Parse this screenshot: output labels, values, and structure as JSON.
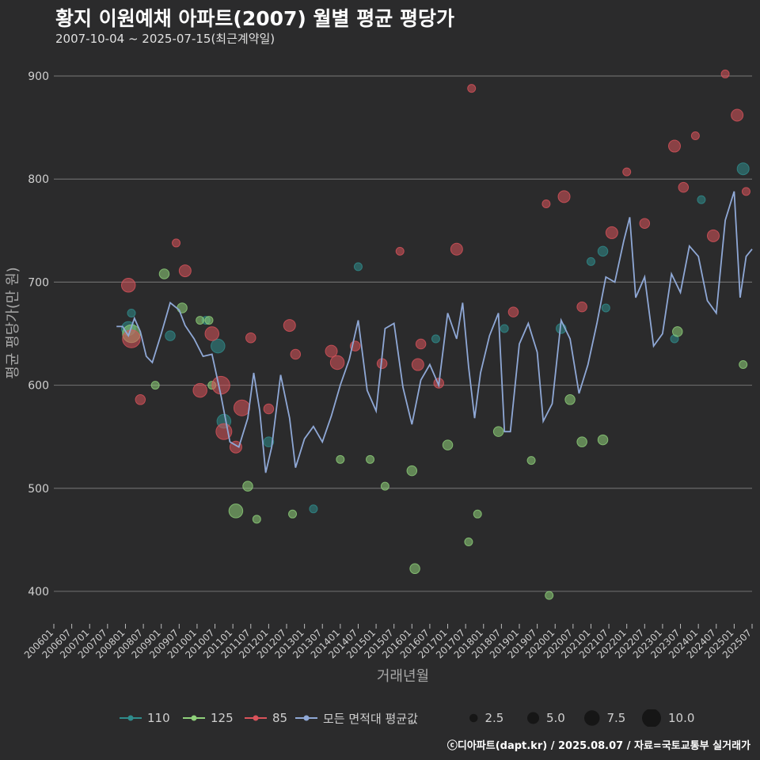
{
  "title": "황지 이원예채 아파트(2007) 월별 평균 평당가",
  "subtitle": "2007-10-04 ~ 2025-07-15(최근계약일)",
  "footer": "ⓒ디아파트(dapt.kr) / 2025.08.07 / 자료=국토교통부 실거래가",
  "chart_data": {
    "type": "scatter",
    "xlabel": "거래년월",
    "ylabel": "평균 평당가(만 원)",
    "ylim": [
      370,
      920
    ],
    "yticks": [
      400,
      500,
      600,
      700,
      800,
      900
    ],
    "xticks": [
      "200601",
      "200607",
      "200701",
      "200707",
      "200801",
      "200807",
      "200901",
      "200907",
      "201001",
      "201007",
      "201101",
      "201107",
      "201201",
      "201207",
      "201301",
      "201307",
      "201401",
      "201407",
      "201501",
      "201507",
      "201601",
      "201607",
      "201701",
      "201707",
      "201801",
      "201807",
      "201901",
      "201907",
      "202001",
      "202007",
      "202101",
      "202107",
      "202201",
      "202207",
      "202301",
      "202307",
      "202401",
      "202407",
      "202501",
      "202507"
    ],
    "grid": true,
    "legend_position": "bottom",
    "colors": {
      "110": "#2f8c8c",
      "125": "#8fd17a",
      "85": "#d9535b",
      "avg": "#8fa8d6"
    },
    "series": [
      {
        "name": "110",
        "points": [
          {
            "x": "2008-02",
            "y": 655,
            "size": 5
          },
          {
            "x": "2008-03",
            "y": 670,
            "size": 2
          },
          {
            "x": "2009-04",
            "y": 648,
            "size": 3
          },
          {
            "x": "2010-04",
            "y": 663,
            "size": 2
          },
          {
            "x": "2010-08",
            "y": 638,
            "size": 5
          },
          {
            "x": "2010-10",
            "y": 565,
            "size": 5
          },
          {
            "x": "2012-01",
            "y": 545,
            "size": 3
          },
          {
            "x": "2013-04",
            "y": 480,
            "size": 2
          },
          {
            "x": "2014-07",
            "y": 715,
            "size": 2
          },
          {
            "x": "2016-09",
            "y": 645,
            "size": 2
          },
          {
            "x": "2018-08",
            "y": 655,
            "size": 2
          },
          {
            "x": "2020-03",
            "y": 655,
            "size": 3
          },
          {
            "x": "2021-01",
            "y": 720,
            "size": 2
          },
          {
            "x": "2021-05",
            "y": 730,
            "size": 3
          },
          {
            "x": "2021-06",
            "y": 675,
            "size": 2
          },
          {
            "x": "2023-05",
            "y": 645,
            "size": 2
          },
          {
            "x": "2024-02",
            "y": 780,
            "size": 2
          },
          {
            "x": "2025-04",
            "y": 810,
            "size": 4
          }
        ]
      },
      {
        "name": "125",
        "points": [
          {
            "x": "2008-03",
            "y": 650,
            "size": 7
          },
          {
            "x": "2008-11",
            "y": 600,
            "size": 2
          },
          {
            "x": "2009-02",
            "y": 708,
            "size": 3
          },
          {
            "x": "2009-08",
            "y": 675,
            "size": 3
          },
          {
            "x": "2010-02",
            "y": 663,
            "size": 2
          },
          {
            "x": "2010-05",
            "y": 663,
            "size": 2
          },
          {
            "x": "2010-06",
            "y": 600,
            "size": 2
          },
          {
            "x": "2011-02",
            "y": 478,
            "size": 5
          },
          {
            "x": "2011-06",
            "y": 502,
            "size": 3
          },
          {
            "x": "2011-09",
            "y": 470,
            "size": 2
          },
          {
            "x": "2012-09",
            "y": 475,
            "size": 2
          },
          {
            "x": "2014-01",
            "y": 528,
            "size": 2
          },
          {
            "x": "2014-11",
            "y": 528,
            "size": 2
          },
          {
            "x": "2015-04",
            "y": 502,
            "size": 2
          },
          {
            "x": "2016-01",
            "y": 517,
            "size": 3
          },
          {
            "x": "2016-02",
            "y": 422,
            "size": 3
          },
          {
            "x": "2017-01",
            "y": 542,
            "size": 3
          },
          {
            "x": "2017-08",
            "y": 448,
            "size": 2
          },
          {
            "x": "2017-11",
            "y": 475,
            "size": 2
          },
          {
            "x": "2018-06",
            "y": 555,
            "size": 3
          },
          {
            "x": "2019-05",
            "y": 527,
            "size": 2
          },
          {
            "x": "2019-11",
            "y": 396,
            "size": 2
          },
          {
            "x": "2020-06",
            "y": 586,
            "size": 3
          },
          {
            "x": "2020-10",
            "y": 545,
            "size": 3
          },
          {
            "x": "2021-05",
            "y": 547,
            "size": 3
          },
          {
            "x": "2023-06",
            "y": 652,
            "size": 3
          },
          {
            "x": "2025-04",
            "y": 620,
            "size": 2
          }
        ]
      },
      {
        "name": "85",
        "points": [
          {
            "x": "2008-02",
            "y": 697,
            "size": 5
          },
          {
            "x": "2008-03",
            "y": 645,
            "size": 7
          },
          {
            "x": "2008-06",
            "y": 586,
            "size": 3
          },
          {
            "x": "2009-06",
            "y": 738,
            "size": 2
          },
          {
            "x": "2009-09",
            "y": 711,
            "size": 4
          },
          {
            "x": "2010-02",
            "y": 595,
            "size": 5
          },
          {
            "x": "2010-06",
            "y": 650,
            "size": 5
          },
          {
            "x": "2010-09",
            "y": 600,
            "size": 7
          },
          {
            "x": "2010-10",
            "y": 555,
            "size": 6
          },
          {
            "x": "2011-02",
            "y": 540,
            "size": 4
          },
          {
            "x": "2011-04",
            "y": 578,
            "size": 6
          },
          {
            "x": "2011-07",
            "y": 646,
            "size": 3
          },
          {
            "x": "2012-01",
            "y": 577,
            "size": 3
          },
          {
            "x": "2012-08",
            "y": 658,
            "size": 4
          },
          {
            "x": "2012-10",
            "y": 630,
            "size": 3
          },
          {
            "x": "2013-10",
            "y": 633,
            "size": 4
          },
          {
            "x": "2013-12",
            "y": 622,
            "size": 5
          },
          {
            "x": "2014-06",
            "y": 638,
            "size": 3
          },
          {
            "x": "2015-03",
            "y": 621,
            "size": 3
          },
          {
            "x": "2015-09",
            "y": 730,
            "size": 2
          },
          {
            "x": "2016-03",
            "y": 620,
            "size": 4
          },
          {
            "x": "2016-04",
            "y": 640,
            "size": 3
          },
          {
            "x": "2016-10",
            "y": 602,
            "size": 3
          },
          {
            "x": "2017-04",
            "y": 732,
            "size": 4
          },
          {
            "x": "2017-09",
            "y": 888,
            "size": 2
          },
          {
            "x": "2018-11",
            "y": 671,
            "size": 3
          },
          {
            "x": "2019-10",
            "y": 776,
            "size": 2
          },
          {
            "x": "2020-04",
            "y": 783,
            "size": 4
          },
          {
            "x": "2020-10",
            "y": 676,
            "size": 3
          },
          {
            "x": "2021-08",
            "y": 748,
            "size": 4
          },
          {
            "x": "2022-01",
            "y": 807,
            "size": 2
          },
          {
            "x": "2022-07",
            "y": 757,
            "size": 3
          },
          {
            "x": "2023-05",
            "y": 832,
            "size": 4
          },
          {
            "x": "2023-08",
            "y": 792,
            "size": 3
          },
          {
            "x": "2023-12",
            "y": 842,
            "size": 2
          },
          {
            "x": "2024-06",
            "y": 745,
            "size": 4
          },
          {
            "x": "2024-10",
            "y": 902,
            "size": 2
          },
          {
            "x": "2025-02",
            "y": 862,
            "size": 4
          },
          {
            "x": "2025-05",
            "y": 788,
            "size": 2
          }
        ]
      },
      {
        "name": "모든 면적대 평균값",
        "type": "line",
        "points": [
          {
            "x": "2007-10",
            "y": 657
          },
          {
            "x": "2007-12",
            "y": 657
          },
          {
            "x": "2008-02",
            "y": 648
          },
          {
            "x": "2008-04",
            "y": 665
          },
          {
            "x": "2008-06",
            "y": 652
          },
          {
            "x": "2008-08",
            "y": 628
          },
          {
            "x": "2008-10",
            "y": 622
          },
          {
            "x": "2009-01",
            "y": 650
          },
          {
            "x": "2009-04",
            "y": 680
          },
          {
            "x": "2009-07",
            "y": 673
          },
          {
            "x": "2009-09",
            "y": 658
          },
          {
            "x": "2009-12",
            "y": 645
          },
          {
            "x": "2010-03",
            "y": 628
          },
          {
            "x": "2010-06",
            "y": 630
          },
          {
            "x": "2010-09",
            "y": 590
          },
          {
            "x": "2010-12",
            "y": 545
          },
          {
            "x": "2011-03",
            "y": 540
          },
          {
            "x": "2011-06",
            "y": 568
          },
          {
            "x": "2011-08",
            "y": 612
          },
          {
            "x": "2011-10",
            "y": 575
          },
          {
            "x": "2011-12",
            "y": 515
          },
          {
            "x": "2012-02",
            "y": 540
          },
          {
            "x": "2012-05",
            "y": 610
          },
          {
            "x": "2012-08",
            "y": 568
          },
          {
            "x": "2012-10",
            "y": 520
          },
          {
            "x": "2013-01",
            "y": 548
          },
          {
            "x": "2013-04",
            "y": 560
          },
          {
            "x": "2013-07",
            "y": 545
          },
          {
            "x": "2013-10",
            "y": 570
          },
          {
            "x": "2014-01",
            "y": 600
          },
          {
            "x": "2014-04",
            "y": 625
          },
          {
            "x": "2014-07",
            "y": 663
          },
          {
            "x": "2014-10",
            "y": 595
          },
          {
            "x": "2015-01",
            "y": 575
          },
          {
            "x": "2015-04",
            "y": 655
          },
          {
            "x": "2015-07",
            "y": 660
          },
          {
            "x": "2015-10",
            "y": 598
          },
          {
            "x": "2016-01",
            "y": 562
          },
          {
            "x": "2016-04",
            "y": 605
          },
          {
            "x": "2016-07",
            "y": 620
          },
          {
            "x": "2016-10",
            "y": 600
          },
          {
            "x": "2017-01",
            "y": 670
          },
          {
            "x": "2017-04",
            "y": 645
          },
          {
            "x": "2017-06",
            "y": 680
          },
          {
            "x": "2017-08",
            "y": 618
          },
          {
            "x": "2017-10",
            "y": 568
          },
          {
            "x": "2017-12",
            "y": 612
          },
          {
            "x": "2018-03",
            "y": 648
          },
          {
            "x": "2018-06",
            "y": 670
          },
          {
            "x": "2018-08",
            "y": 555
          },
          {
            "x": "2018-10",
            "y": 555
          },
          {
            "x": "2019-01",
            "y": 640
          },
          {
            "x": "2019-04",
            "y": 660
          },
          {
            "x": "2019-07",
            "y": 632
          },
          {
            "x": "2019-09",
            "y": 565
          },
          {
            "x": "2019-12",
            "y": 582
          },
          {
            "x": "2020-03",
            "y": 663
          },
          {
            "x": "2020-06",
            "y": 645
          },
          {
            "x": "2020-09",
            "y": 592
          },
          {
            "x": "2020-12",
            "y": 620
          },
          {
            "x": "2021-03",
            "y": 660
          },
          {
            "x": "2021-06",
            "y": 705
          },
          {
            "x": "2021-09",
            "y": 700
          },
          {
            "x": "2021-12",
            "y": 740
          },
          {
            "x": "2022-02",
            "y": 763
          },
          {
            "x": "2022-04",
            "y": 685
          },
          {
            "x": "2022-07",
            "y": 705
          },
          {
            "x": "2022-10",
            "y": 638
          },
          {
            "x": "2023-01",
            "y": 650
          },
          {
            "x": "2023-04",
            "y": 708
          },
          {
            "x": "2023-07",
            "y": 690
          },
          {
            "x": "2023-10",
            "y": 735
          },
          {
            "x": "2024-01",
            "y": 725
          },
          {
            "x": "2024-04",
            "y": 682
          },
          {
            "x": "2024-07",
            "y": 670
          },
          {
            "x": "2024-10",
            "y": 760
          },
          {
            "x": "2025-01",
            "y": 788
          },
          {
            "x": "2025-03",
            "y": 685
          },
          {
            "x": "2025-05",
            "y": 725
          },
          {
            "x": "2025-07",
            "y": 732
          }
        ]
      }
    ],
    "legend": [
      {
        "label": "110",
        "color": "#2f8c8c"
      },
      {
        "label": "125",
        "color": "#8fd17a"
      },
      {
        "label": "85",
        "color": "#d9535b"
      },
      {
        "label": "모든 면적대 평균값",
        "color": "#8fa8d6"
      }
    ],
    "size_legend": [
      "2.5",
      "5.0",
      "7.5",
      "10.0"
    ]
  }
}
